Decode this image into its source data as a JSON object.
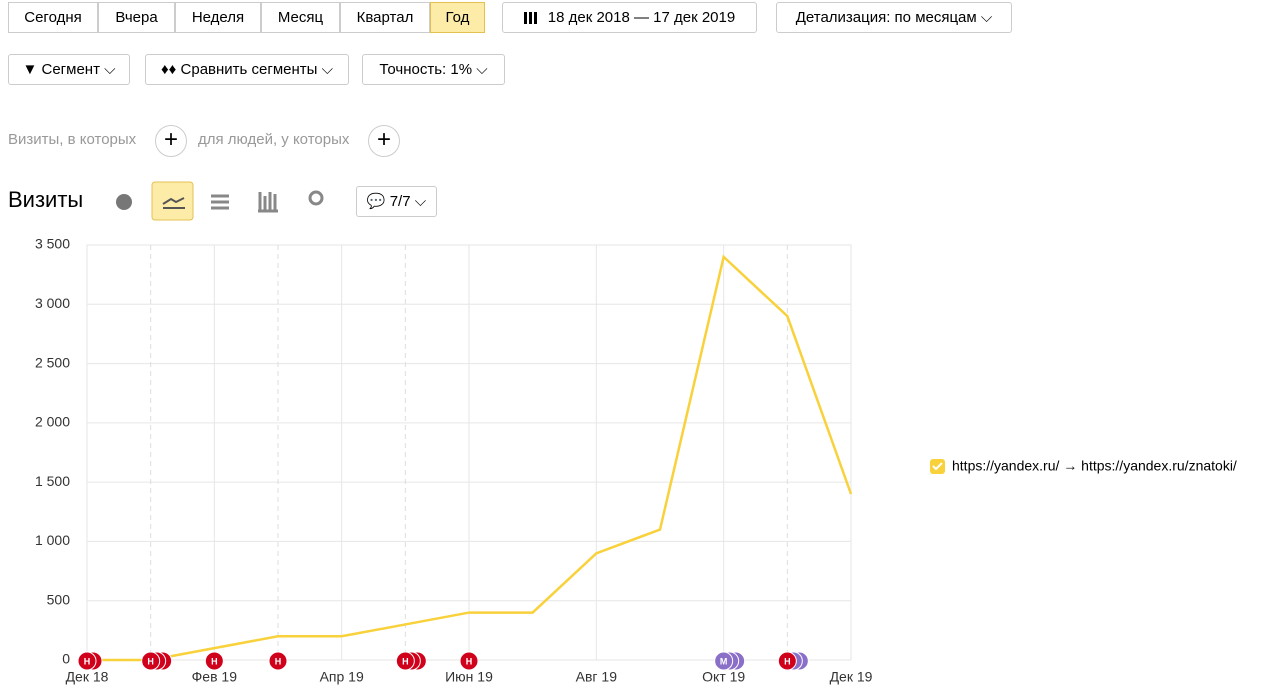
{
  "toolbar": {
    "periods": [
      "Сегодня",
      "Вчера",
      "Неделя",
      "Месяц",
      "Квартал",
      "Год"
    ],
    "date_range": "18 дек 2018 — 17 дек 2019",
    "detail": "Детализация: по месяцам"
  },
  "segments": {
    "segment": "Сегмент",
    "compare": "Сравнить сегменты",
    "accuracy": "Точность: 1%"
  },
  "filter": {
    "visits_where": "Визиты, в которых",
    "people_where": "для людей, у которых"
  },
  "report": {
    "title": "Визиты",
    "comments": "7/7"
  },
  "chart_data": {
    "type": "line",
    "categories": [
      "Дек 18",
      null,
      "Фев 19",
      null,
      "Апр 19",
      null,
      "Июн 19",
      null,
      "Авг 19",
      null,
      "Окт 19",
      null,
      "Дек 19"
    ],
    "series": [
      {
        "name": "https://yandex.ru/ → https://yandex.ru/znatoki/",
        "color": "#f8d13b",
        "values": [
          0,
          0,
          100,
          200,
          200,
          300,
          400,
          400,
          900,
          1100,
          3400,
          2900,
          1400
        ]
      }
    ],
    "ylim": [
      0,
      3500
    ],
    "yticks": [
      0,
      500,
      {
        "value": 1000,
        "label": "1 000"
      },
      {
        "value": 1500,
        "label": "1 500"
      },
      {
        "value": 2000,
        "label": "2 000"
      },
      {
        "value": 2500,
        "label": "2 500"
      },
      {
        "value": 3000,
        "label": "3 000"
      },
      {
        "value": 3500,
        "label": "3 500"
      }
    ],
    "grid": true,
    "annotations": [
      {
        "category": 0,
        "label": "Н",
        "color": "#d0021b",
        "count": 2
      },
      {
        "category": 1,
        "label": "Н",
        "color": "#d0021b",
        "count": 3
      },
      {
        "category": 2,
        "label": "Н",
        "color": "#d0021b",
        "count": 1
      },
      {
        "category": 3,
        "label": "Н",
        "color": "#d0021b",
        "count": 1
      },
      {
        "category": 5,
        "label": "Н",
        "color": "#d0021b",
        "count": 3
      },
      {
        "category": 6,
        "label": "Н",
        "color": "#d0021b",
        "count": 1
      },
      {
        "category": 10,
        "label": "М",
        "color": "#8a6fc8",
        "count": 3
      },
      {
        "category": 11,
        "label": "Н",
        "color": "#d0021b",
        "count": 3
      }
    ]
  }
}
